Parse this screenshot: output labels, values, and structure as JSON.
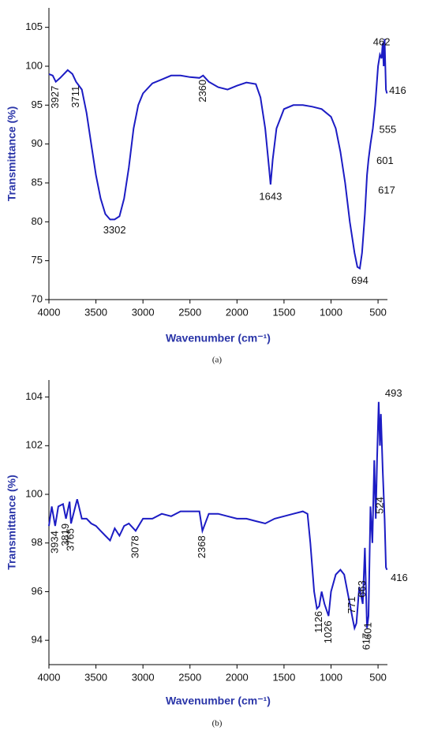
{
  "chart_data": [
    {
      "type": "line",
      "caption": "(a)",
      "xlabel": "Wavenumber (cm⁻¹)",
      "ylabel": "Transmittance (%)",
      "xlim": [
        4000,
        400
      ],
      "xticks": [
        4000,
        3500,
        3000,
        2500,
        2000,
        1500,
        1000,
        500
      ],
      "ylim": [
        70,
        107.5
      ],
      "yticks": [
        70,
        75,
        80,
        85,
        90,
        95,
        100,
        105
      ],
      "x": [
        4000,
        3960,
        3927,
        3880,
        3800,
        3750,
        3711,
        3650,
        3600,
        3550,
        3500,
        3450,
        3400,
        3350,
        3302,
        3250,
        3200,
        3150,
        3100,
        3050,
        3000,
        2900,
        2800,
        2700,
        2600,
        2500,
        2400,
        2360,
        2300,
        2200,
        2100,
        2000,
        1900,
        1800,
        1750,
        1700,
        1660,
        1643,
        1620,
        1580,
        1500,
        1400,
        1300,
        1200,
        1100,
        1000,
        950,
        900,
        850,
        800,
        750,
        720,
        694,
        670,
        640,
        617,
        601,
        580,
        555,
        530,
        500,
        480,
        462,
        450,
        440,
        430,
        416,
        405
      ],
      "series": [
        {
          "name": "a",
          "color": "#1c1cc4",
          "values": [
            99,
            98.8,
            98,
            98.5,
            99.5,
            99,
            98,
            97,
            94,
            90,
            86,
            83,
            81,
            80.3,
            80.3,
            80.7,
            83,
            87,
            92,
            95,
            96.5,
            97.8,
            98.3,
            98.8,
            98.8,
            98.6,
            98.5,
            98.8,
            98,
            97.3,
            97,
            97.5,
            97.9,
            97.7,
            96,
            92,
            87,
            84.8,
            88,
            92,
            94.5,
            95,
            95,
            94.8,
            94.5,
            93.5,
            92,
            89,
            85,
            80,
            76,
            74.2,
            74,
            76,
            81,
            86,
            88,
            90,
            92,
            95,
            100,
            101.5,
            101,
            103,
            100,
            103.5,
            97,
            96.5
          ]
        }
      ],
      "annotations": [
        "3927",
        "3711",
        "2360",
        "3302",
        "1643",
        "694",
        "617",
        "601",
        "555",
        "462",
        "416"
      ]
    },
    {
      "type": "line",
      "caption": "(b)",
      "xlabel": "Wavenumber (cm⁻¹)",
      "ylabel": "Transmittance (%)",
      "xlim": [
        4000,
        400
      ],
      "xticks": [
        4000,
        3500,
        3000,
        2500,
        2000,
        1500,
        1000,
        500
      ],
      "ylim": [
        93,
        104.7
      ],
      "yticks": [
        94,
        96,
        98,
        100,
        102,
        104
      ],
      "x": [
        4000,
        3970,
        3934,
        3900,
        3850,
        3819,
        3780,
        3765,
        3700,
        3650,
        3600,
        3550,
        3500,
        3450,
        3400,
        3350,
        3300,
        3250,
        3200,
        3150,
        3078,
        3000,
        2900,
        2800,
        2700,
        2600,
        2500,
        2400,
        2368,
        2300,
        2200,
        2100,
        2000,
        1900,
        1800,
        1700,
        1600,
        1500,
        1400,
        1300,
        1250,
        1220,
        1180,
        1150,
        1126,
        1100,
        1070,
        1026,
        1000,
        950,
        900,
        860,
        800,
        771,
        750,
        730,
        700,
        663,
        640,
        617,
        601,
        580,
        560,
        540,
        524,
        510,
        493,
        480,
        470,
        450,
        430,
        416,
        405
      ],
      "series": [
        {
          "name": "b",
          "color": "#1c1cc4",
          "values": [
            98.7,
            99.5,
            98.7,
            99.5,
            99.6,
            99,
            99.7,
            98.8,
            99.8,
            99,
            99,
            98.8,
            98.7,
            98.5,
            98.3,
            98.1,
            98.6,
            98.3,
            98.7,
            98.8,
            98.5,
            99,
            99,
            99.2,
            99.1,
            99.3,
            99.3,
            99.3,
            98.5,
            99.2,
            99.2,
            99.1,
            99,
            99,
            98.9,
            98.8,
            99,
            99.1,
            99.2,
            99.3,
            99.2,
            98,
            96,
            95.3,
            95.4,
            96,
            95.5,
            95,
            96,
            96.7,
            96.9,
            96.7,
            95.5,
            94.9,
            94.5,
            94.7,
            96.2,
            95.5,
            97.8,
            94.5,
            95,
            99.5,
            98,
            101.4,
            99,
            101.5,
            103.8,
            102,
            103.3,
            101,
            99,
            97,
            96.9
          ]
        }
      ],
      "annotations": [
        "3934",
        "3819",
        "3765",
        "3078",
        "2368",
        "1126",
        "1026",
        "771",
        "663",
        "617",
        "601",
        "524",
        "493",
        "416"
      ]
    }
  ]
}
